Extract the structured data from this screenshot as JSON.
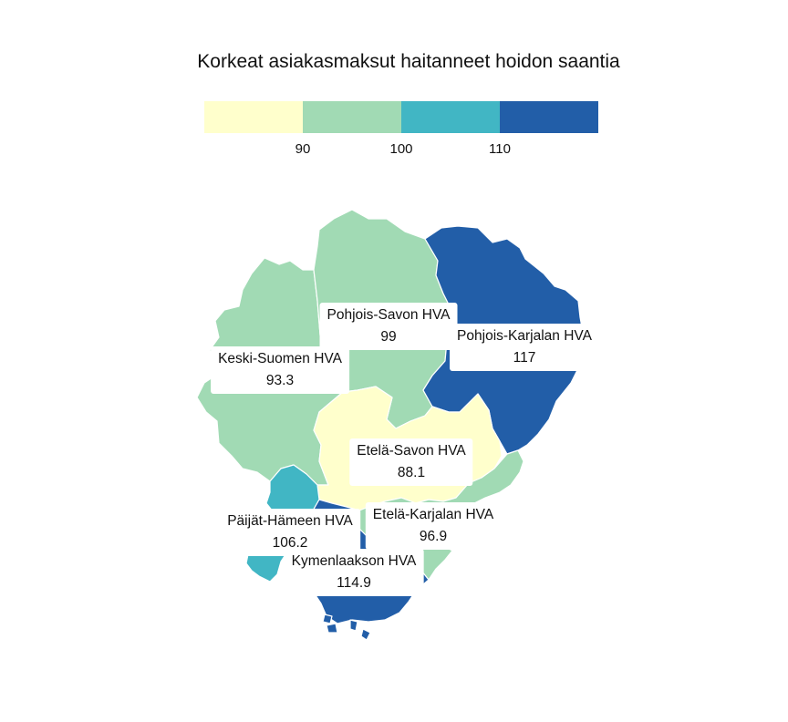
{
  "title": "Korkeat asiakasmaksut haitanneet hoidon saantia",
  "legend": {
    "colors": [
      "#ffffcc",
      "#a1dab4",
      "#41b6c4",
      "#225ea8"
    ],
    "ticks": [
      "90",
      "100",
      "110"
    ]
  },
  "regions": [
    {
      "name": "Keski-Suomen HVA",
      "value": "93.3",
      "color": "#a1dab4"
    },
    {
      "name": "Pohjois-Savon HVA",
      "value": "99",
      "color": "#a1dab4"
    },
    {
      "name": "Pohjois-Karjalan HVA",
      "value": "117",
      "color": "#225ea8"
    },
    {
      "name": "Etelä-Savon HVA",
      "value": "88.1",
      "color": "#ffffcc"
    },
    {
      "name": "Päijät-Hämeen HVA",
      "value": "106.2",
      "color": "#41b6c4"
    },
    {
      "name": "Etelä-Karjalan HVA",
      "value": "96.9",
      "color": "#a1dab4"
    },
    {
      "name": "Kymenlaakson HVA",
      "value": "114.9",
      "color": "#225ea8"
    }
  ]
}
